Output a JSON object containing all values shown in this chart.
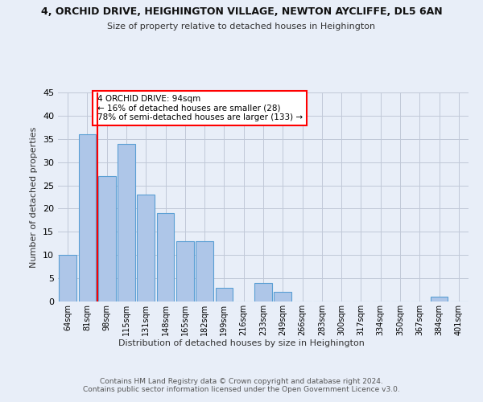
{
  "title1": "4, ORCHID DRIVE, HEIGHINGTON VILLAGE, NEWTON AYCLIFFE, DL5 6AN",
  "title2": "Size of property relative to detached houses in Heighington",
  "xlabel": "Distribution of detached houses by size in Heighington",
  "ylabel": "Number of detached properties",
  "categories": [
    "64sqm",
    "81sqm",
    "98sqm",
    "115sqm",
    "131sqm",
    "148sqm",
    "165sqm",
    "182sqm",
    "199sqm",
    "216sqm",
    "233sqm",
    "249sqm",
    "266sqm",
    "283sqm",
    "300sqm",
    "317sqm",
    "334sqm",
    "350sqm",
    "367sqm",
    "384sqm",
    "401sqm"
  ],
  "values": [
    10,
    36,
    27,
    34,
    23,
    19,
    13,
    13,
    3,
    0,
    4,
    2,
    0,
    0,
    0,
    0,
    0,
    0,
    0,
    1,
    0
  ],
  "bar_color": "#aec6e8",
  "bar_edge_color": "#5a9fd4",
  "vline_x_index": 1.5,
  "vline_color": "red",
  "annotation_text": "4 ORCHID DRIVE: 94sqm\n← 16% of detached houses are smaller (28)\n78% of semi-detached houses are larger (133) →",
  "annotation_box_color": "white",
  "annotation_box_edge": "red",
  "ylim": [
    0,
    45
  ],
  "yticks": [
    0,
    5,
    10,
    15,
    20,
    25,
    30,
    35,
    40,
    45
  ],
  "footer": "Contains HM Land Registry data © Crown copyright and database right 2024.\nContains public sector information licensed under the Open Government Licence v3.0.",
  "bg_color": "#e8eef8",
  "plot_bg_color": "#e8eef8"
}
